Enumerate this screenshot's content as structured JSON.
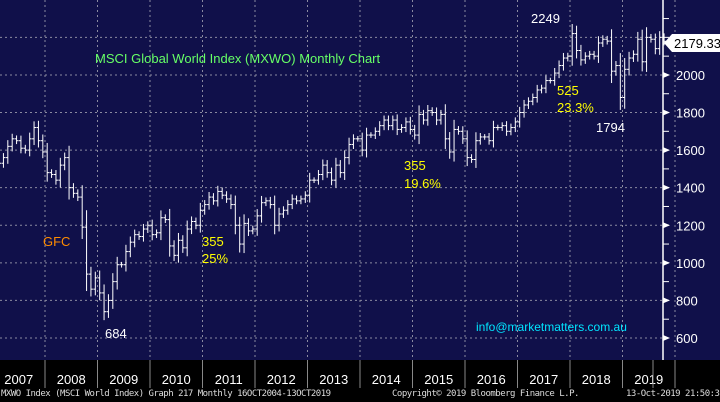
{
  "chart_data": {
    "type": "bar",
    "subtype": "ohlc-monthly",
    "title": "MSCI Global World Index (MXWO) Monthly Chart",
    "start_month": "2006-10",
    "closes": [
      1460,
      1490,
      1520,
      1540,
      1530,
      1560,
      1620,
      1660,
      1650,
      1610,
      1600,
      1660,
      1720,
      1650,
      1590,
      1480,
      1470,
      1440,
      1520,
      1560,
      1400,
      1370,
      1350,
      1190,
      940,
      860,
      920,
      840,
      740,
      800,
      900,
      990,
      990,
      1060,
      1110,
      1150,
      1140,
      1180,
      1200,
      1150,
      1160,
      1240,
      1230,
      1090,
      1040,
      1120,
      1080,
      1180,
      1220,
      1200,
      1280,
      1310,
      1350,
      1330,
      1380,
      1360,
      1340,
      1310,
      1200,
      1100,
      1210,
      1170,
      1180,
      1250,
      1320,
      1330,
      1310,
      1200,
      1260,
      1280,
      1310,
      1340,
      1330,
      1340,
      1360,
      1440,
      1440,
      1470,
      1520,
      1480,
      1440,
      1520,
      1480,
      1560,
      1630,
      1660,
      1660,
      1600,
      1680,
      1680,
      1700,
      1730,
      1760,
      1730,
      1760,
      1710,
      1720,
      1750,
      1710,
      1680,
      1790,
      1760,
      1810,
      1800,
      1760,
      1790,
      1660,
      1590,
      1710,
      1700,
      1660,
      1560,
      1550,
      1650,
      1670,
      1670,
      1650,
      1720,
      1720,
      1730,
      1700,
      1720,
      1750,
      1800,
      1840,
      1860,
      1880,
      1920,
      1930,
      1970,
      1970,
      2010,
      2050,
      2090,
      2100,
      2220,
      2130,
      2080,
      2100,
      2110,
      2100,
      2170,
      2190,
      2180,
      2020,
      2050,
      1880,
      2030,
      2090,
      2110,
      2190,
      2070,
      2200,
      2190,
      2140,
      2200,
      2179
    ],
    "x_tick_labels": [
      "2007",
      "2008",
      "2009",
      "2010",
      "2011",
      "2012",
      "2013",
      "2014",
      "2015",
      "2016",
      "2017",
      "2018",
      "2019"
    ],
    "y_tick_labels": [
      "600",
      "800",
      "1000",
      "1200",
      "1400",
      "1600",
      "1800",
      "2000"
    ],
    "ylim": [
      560,
      2330
    ],
    "last_price": "2179.33",
    "annotations": [
      {
        "text": "2249",
        "color": "#ffffff"
      },
      {
        "text": "525",
        "color": "#ffff00"
      },
      {
        "text": "23.3%",
        "color": "#ffff00"
      },
      {
        "text": "1794",
        "color": "#ffffff"
      },
      {
        "text": "355",
        "color": "#ffff00"
      },
      {
        "text": "19.6%",
        "color": "#ffff00"
      },
      {
        "text": "355",
        "color": "#ffff00"
      },
      {
        "text": "25%",
        "color": "#ffff00"
      },
      {
        "text": "GFC",
        "color": "#ff8c00"
      },
      {
        "text": "684",
        "color": "#ffffff"
      }
    ],
    "watermark": "info@marketmatters.com.au"
  },
  "footer": {
    "left": "MXWO Index (MSCI World Index) Graph 217  Monthly 16OCT2004-13OCT2019",
    "center": "Copyright© 2019 Bloomberg Finance L.P.",
    "right": "13-Oct-2019 21:50:39"
  },
  "colors": {
    "background": "#10104a",
    "title": "#66ff66",
    "watermark": "#00e5ff"
  }
}
